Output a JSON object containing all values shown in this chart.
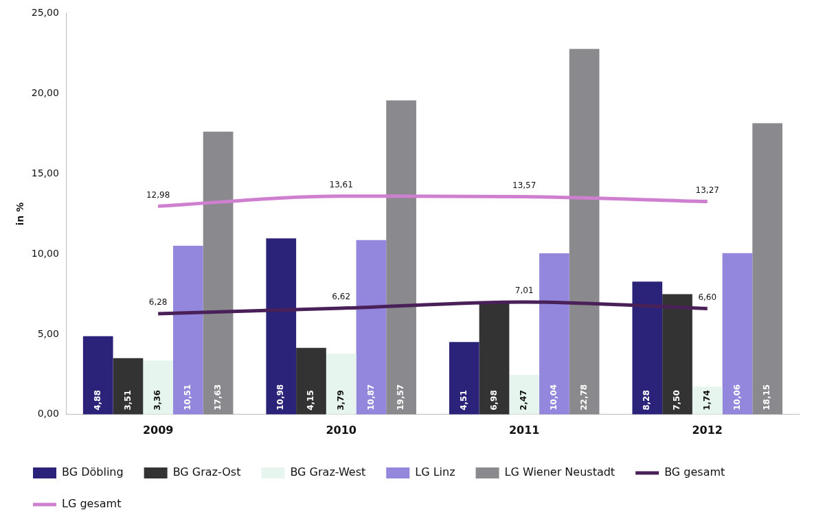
{
  "chart_data": {
    "type": "bar",
    "ylabel": "in %",
    "categories": [
      "2009",
      "2010",
      "2011",
      "2012"
    ],
    "series": [
      {
        "name": "BG Döbling",
        "color": "#2a2379",
        "values": [
          4.88,
          10.98,
          4.51,
          8.28
        ],
        "value_labels": [
          "4,88",
          "10,98",
          "4,51",
          "8,28"
        ]
      },
      {
        "name": "BG Graz-Ost",
        "color": "#333333",
        "values": [
          3.51,
          4.15,
          6.98,
          7.5
        ],
        "value_labels": [
          "3,51",
          "4,15",
          "6,98",
          "7,50"
        ]
      },
      {
        "name": "BG Graz-West",
        "color": "#e6f5ee",
        "values": [
          3.36,
          3.79,
          2.47,
          1.74
        ],
        "value_labels": [
          "3,36",
          "3,79",
          "2,47",
          "1,74"
        ]
      },
      {
        "name": "LG Linz",
        "color": "#9287dc",
        "values": [
          10.51,
          10.87,
          10.04,
          10.06
        ],
        "value_labels": [
          "10,51",
          "10,87",
          "10,04",
          "10,06"
        ]
      },
      {
        "name": "LG Wiener Neustadt",
        "color": "#8a8a8e",
        "values": [
          17.63,
          19.57,
          22.78,
          18.15
        ],
        "value_labels": [
          "17,63",
          "19,57",
          "22,78",
          "18,15"
        ]
      },
      {
        "name": "BG gesamt",
        "type": "line",
        "color": "#4a2058",
        "values": [
          6.28,
          6.62,
          7.01,
          6.6
        ],
        "value_labels": [
          "6,28",
          "6,62",
          "7,01",
          "6,60"
        ]
      },
      {
        "name": "LG gesamt",
        "type": "line",
        "color": "#cf7fcf",
        "values": [
          12.98,
          13.61,
          13.57,
          13.27
        ],
        "value_labels": [
          "12,98",
          "13,61",
          "13,57",
          "13,27"
        ]
      }
    ],
    "ylim": [
      0,
      25
    ],
    "yticks": [
      {
        "value": 0,
        "label": "0,00"
      },
      {
        "value": 5,
        "label": "5,00"
      },
      {
        "value": 10,
        "label": "10,00"
      },
      {
        "value": 15,
        "label": "15,00"
      },
      {
        "value": 20,
        "label": "20,00"
      },
      {
        "value": 25,
        "label": "25,00"
      }
    ],
    "grid": false,
    "legend": "bottom",
    "marker": "none"
  }
}
